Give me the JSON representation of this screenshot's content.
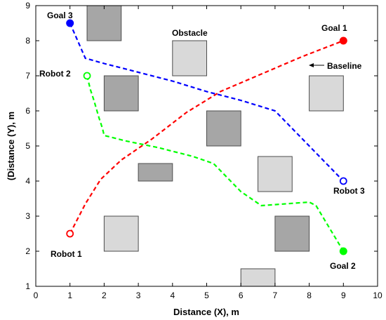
{
  "chart_data": {
    "type": "line",
    "xlabel": "Distance (X), m",
    "ylabel": "(Distance (Y), m",
    "xlim": [
      0,
      10
    ],
    "ylim": [
      1,
      9
    ],
    "xticks": [
      0,
      1,
      2,
      3,
      4,
      5,
      6,
      7,
      8,
      9,
      10
    ],
    "yticks": [
      1,
      2,
      3,
      4,
      5,
      6,
      7,
      8,
      9
    ],
    "grid": false,
    "obstacles": [
      {
        "x0": 1.5,
        "x1": 2.5,
        "y0": 8.0,
        "y1": 9.0,
        "shade": "#a6a6a6"
      },
      {
        "x0": 4.0,
        "x1": 5.0,
        "y0": 7.0,
        "y1": 8.0,
        "shade": "#d9d9d9"
      },
      {
        "x0": 2.0,
        "x1": 3.0,
        "y0": 6.0,
        "y1": 7.0,
        "shade": "#a6a6a6"
      },
      {
        "x0": 8.0,
        "x1": 9.0,
        "y0": 6.0,
        "y1": 7.0,
        "shade": "#d9d9d9"
      },
      {
        "x0": 5.0,
        "x1": 6.0,
        "y0": 5.0,
        "y1": 6.0,
        "shade": "#a6a6a6"
      },
      {
        "x0": 3.0,
        "x1": 4.0,
        "y0": 4.0,
        "y1": 4.5,
        "shade": "#a6a6a6"
      },
      {
        "x0": 6.5,
        "x1": 7.5,
        "y0": 3.7,
        "y1": 4.7,
        "shade": "#d9d9d9"
      },
      {
        "x0": 2.0,
        "x1": 3.0,
        "y0": 2.0,
        "y1": 3.0,
        "shade": "#d9d9d9"
      },
      {
        "x0": 7.0,
        "x1": 8.0,
        "y0": 2.0,
        "y1": 3.0,
        "shade": "#a6a6a6"
      },
      {
        "x0": 6.0,
        "x1": 7.0,
        "y0": 1.0,
        "y1": 1.5,
        "shade": "#d9d9d9"
      }
    ],
    "series": [
      {
        "id": "red",
        "color": "#ff0000",
        "start": [
          1.0,
          2.5
        ],
        "goal": [
          9.0,
          8.0
        ],
        "x": [
          1.0,
          1.45,
          1.9,
          2.5,
          3.4,
          4.4,
          5.4,
          6.6,
          7.8,
          9.0
        ],
        "y": [
          2.5,
          3.35,
          4.05,
          4.6,
          5.2,
          5.95,
          6.55,
          7.05,
          7.55,
          8.0
        ]
      },
      {
        "id": "blue",
        "color": "#0000ff",
        "start": [
          9.0,
          4.0
        ],
        "goal": [
          1.0,
          8.5
        ],
        "x": [
          1.0,
          1.45,
          2.0,
          3.0,
          4.0,
          5.0,
          6.0,
          7.0,
          8.0,
          9.0
        ],
        "y": [
          8.5,
          7.5,
          7.35,
          7.1,
          6.85,
          6.55,
          6.3,
          6.0,
          5.0,
          4.0
        ],
        "start_marker": "hollow",
        "goal_marker": "filled"
      },
      {
        "id": "green",
        "color": "#00ff00",
        "start": [
          1.5,
          7.0
        ],
        "goal": [
          9.0,
          2.0
        ],
        "x": [
          1.5,
          1.6,
          1.7,
          1.85,
          1.95,
          2.0,
          2.6,
          3.6,
          4.6,
          5.2,
          6.0,
          6.6,
          8.0,
          8.2,
          9.0
        ],
        "y": [
          7.0,
          6.6,
          6.3,
          5.8,
          5.5,
          5.3,
          5.15,
          4.95,
          4.7,
          4.5,
          3.7,
          3.3,
          3.4,
          3.3,
          2.0
        ],
        "start_marker": "hollow",
        "goal_marker": "filled"
      }
    ],
    "annotations": {
      "goal3": "Goal 3",
      "goal1": "Goal 1",
      "goal2": "Goal 2",
      "robot1": "Robot 1",
      "robot2": "Robot 2",
      "robot3": "Robot 3",
      "obstacle": "Obstacle",
      "baseline": "Baseline"
    }
  }
}
